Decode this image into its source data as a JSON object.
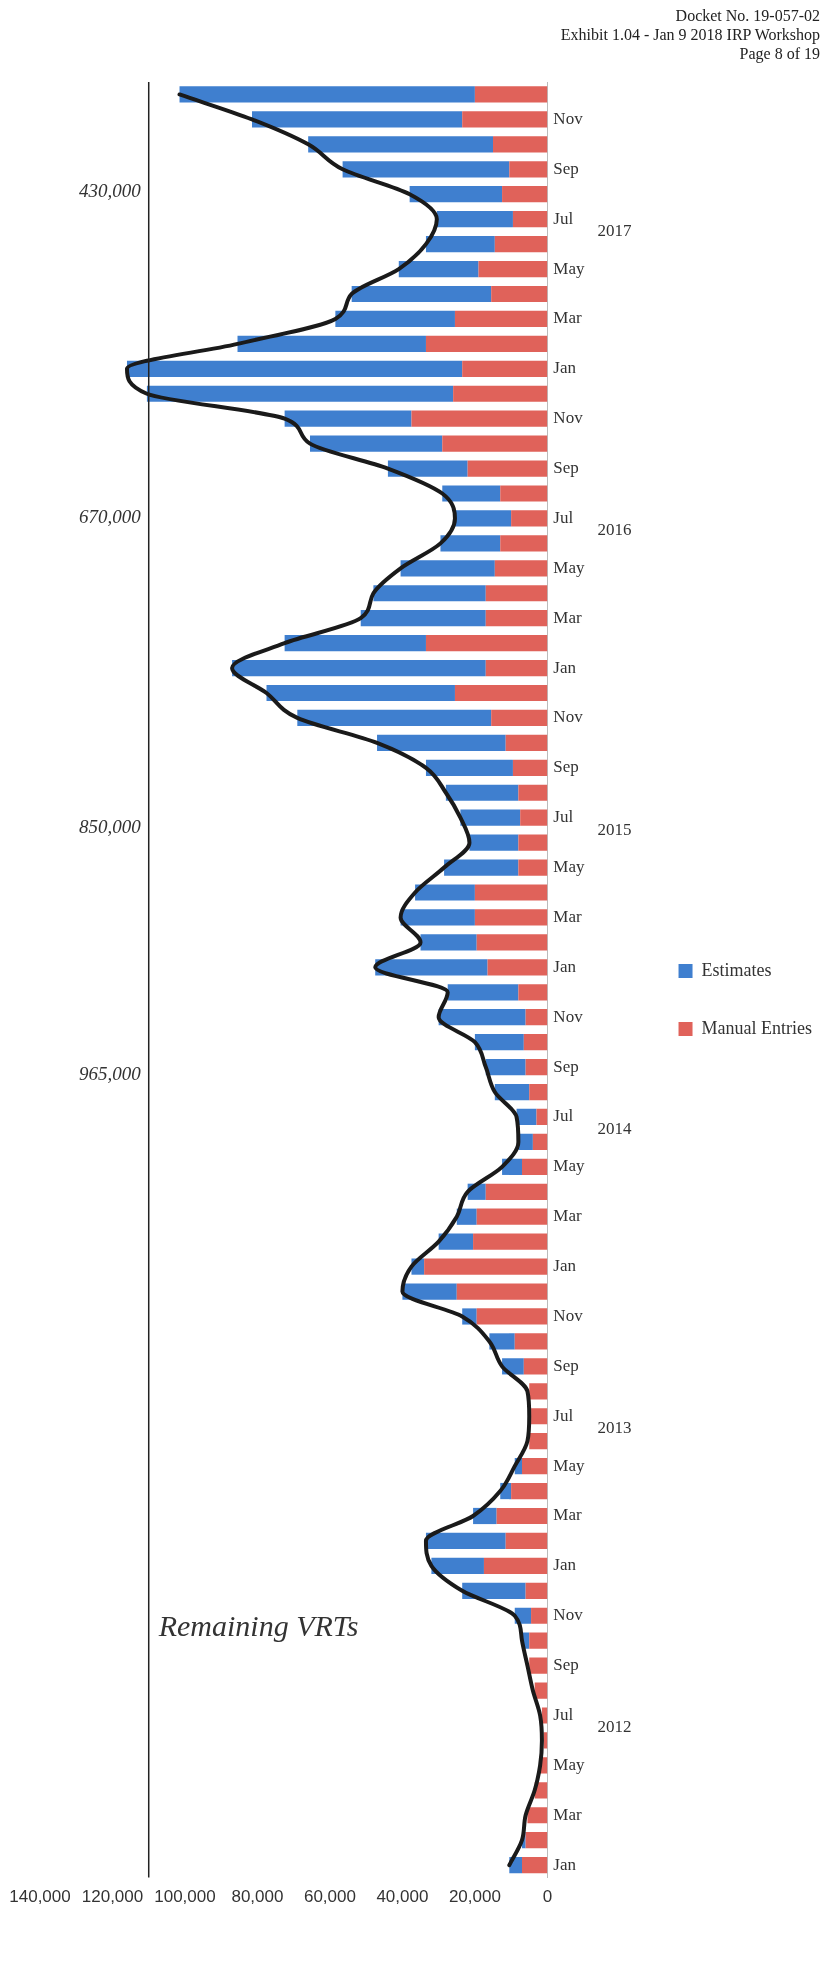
{
  "chart_data": {
    "type": "bar",
    "orientation": "horizontal",
    "stacked": true,
    "title": "Remaining VRTs",
    "categories": [
      null,
      "Nov",
      null,
      "Sep",
      null,
      "Jul",
      null,
      "May",
      null,
      "Mar",
      null,
      "Jan",
      null,
      "Nov",
      null,
      "Sep",
      null,
      "Jul",
      null,
      "May",
      null,
      "Mar",
      null,
      "Jan",
      null,
      "Nov",
      null,
      "Sep",
      null,
      "Jul",
      null,
      "May",
      null,
      "Mar",
      null,
      "Jan",
      null,
      "Nov",
      null,
      "Sep",
      null,
      "Jul",
      null,
      "May",
      null,
      "Mar",
      null,
      "Jan",
      null,
      "Nov",
      null,
      "Sep",
      null,
      "Jul",
      null,
      "May",
      null,
      "Mar",
      null,
      "Jan",
      null,
      "Nov",
      null,
      "Sep",
      null,
      "Jul",
      null,
      "May",
      null,
      "Mar",
      null,
      "Jan"
    ],
    "series": [
      {
        "name": "Manual Entries",
        "color": "#e0625a",
        "values": [
          20000,
          23500,
          15000,
          10500,
          12500,
          9500,
          14500,
          19000,
          15500,
          25500,
          33500,
          23500,
          26000,
          37500,
          29000,
          22000,
          13000,
          10000,
          13000,
          14500,
          17000,
          17000,
          33500,
          17000,
          25500,
          15500,
          11500,
          9500,
          8000,
          7500,
          8000,
          8000,
          20000,
          20000,
          19500,
          16500,
          8000,
          6000,
          6500,
          6000,
          5000,
          3000,
          4000,
          7000,
          17000,
          19500,
          20500,
          34000,
          25000,
          19500,
          9000,
          6500,
          5000,
          4500,
          5000,
          7000,
          10000,
          14000,
          11500,
          17500,
          6000,
          4500,
          5000,
          5000,
          3500,
          1500,
          1000,
          2000,
          3500,
          5500,
          6000,
          7000
        ]
      },
      {
        "name": "Estimates",
        "color": "#3f7fcf",
        "values": [
          81500,
          58000,
          51000,
          46000,
          25500,
          21000,
          19000,
          22000,
          38500,
          33000,
          52000,
          92500,
          84500,
          35000,
          36500,
          22000,
          16000,
          15500,
          16500,
          26000,
          31000,
          34500,
          39000,
          70000,
          52000,
          53500,
          35500,
          24000,
          20000,
          16500,
          13500,
          20500,
          16500,
          20500,
          15500,
          31000,
          19500,
          24000,
          13500,
          11000,
          9500,
          5500,
          4000,
          5500,
          5000,
          5500,
          9500,
          3500,
          15000,
          4000,
          7000,
          6000,
          null,
          null,
          null,
          2000,
          3000,
          6500,
          22000,
          14500,
          17500,
          4500,
          2000,
          null,
          null,
          null,
          null,
          0,
          0,
          null,
          1000,
          3500
        ]
      },
      {
        "type": "line",
        "color": "#1a1a1a",
        "values": [
          101500,
          81500,
          66000,
          56500,
          38000,
          30500,
          33500,
          41000,
          54000,
          58500,
          85500,
          116000,
          110500,
          72500,
          65500,
          44000,
          29000,
          25500,
          29500,
          40500,
          48000,
          51500,
          72500,
          87000,
          77500,
          69000,
          47000,
          33500,
          28000,
          24000,
          21500,
          28500,
          36500,
          40500,
          35000,
          47500,
          27500,
          30000,
          20000,
          17000,
          14500,
          8500,
          8000,
          12500,
          22000,
          25000,
          30000,
          37500,
          40000,
          23500,
          16000,
          12500,
          5500,
          5000,
          5500,
          9000,
          13000,
          20500,
          33500,
          32000,
          23500,
          9000,
          7000,
          5500,
          4000,
          2000,
          1500,
          2000,
          3500,
          6000,
          7000,
          10500
        ]
      }
    ],
    "xlim": [
      140000,
      0
    ],
    "xticks": [
      {
        "value": 0,
        "label": "0"
      },
      {
        "value": 20000,
        "label": "20,000"
      },
      {
        "value": 40000,
        "label": "40,000"
      },
      {
        "value": 60000,
        "label": "60,000"
      },
      {
        "value": 80000,
        "label": "80,000"
      },
      {
        "value": 100000,
        "label": "100,000"
      },
      {
        "value": 120000,
        "label": "120,000"
      },
      {
        "value": 140000,
        "label": "140,000"
      }
    ],
    "grid": false,
    "legend": "right",
    "marker": "none",
    "ref_lines": [
      {
        "axis": "x",
        "value": 110000,
        "color": "#222222"
      }
    ],
    "annotations": [
      "Docket No. 19-057-02",
      "Exhibit 1.04 - Jan 9 2018 IRP Workshop",
      "Page 8 of 19",
      "430,000",
      "670,000",
      "850,000",
      "965,000",
      "2017",
      "2016",
      "2015",
      "2014",
      "2013",
      "2012"
    ]
  }
}
